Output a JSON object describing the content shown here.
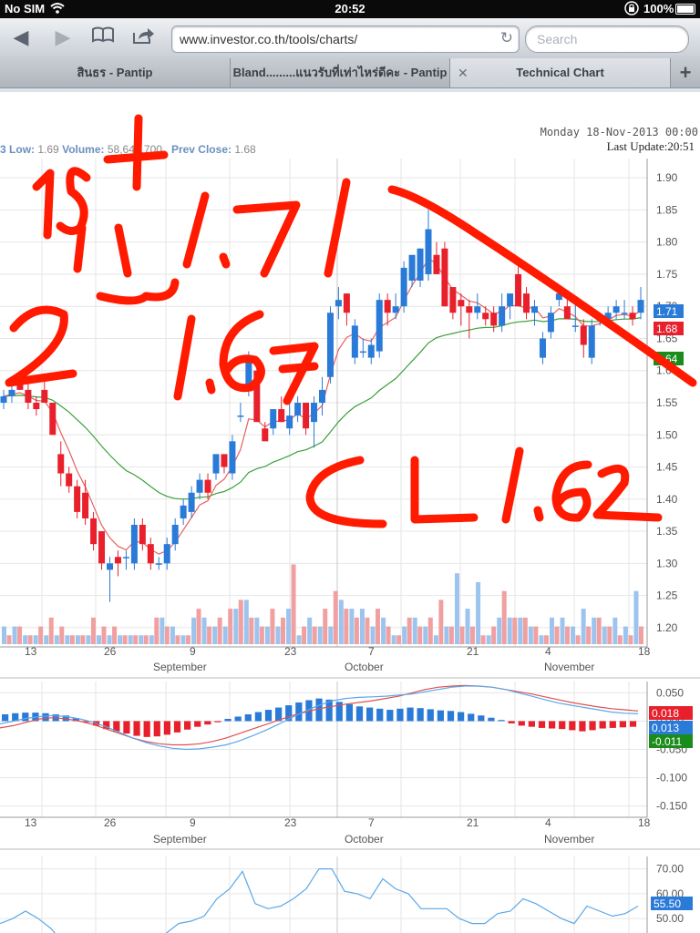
{
  "status_bar": {
    "carrier": "No SIM",
    "time": "20:52",
    "battery": "100%"
  },
  "browser": {
    "url": "www.investor.co.th/tools/charts/",
    "search_placeholder": "Search",
    "tabs": [
      {
        "label": "สินธร - Pantip"
      },
      {
        "label": "Bland.........แนวรับที่เท่าไหร่ดีคะ - Pantip"
      },
      {
        "label": "Technical Chart"
      }
    ]
  },
  "chart_header": {
    "date": "Monday 18-Nov-2013 00:00",
    "last_update": "Last Update:20:51",
    "low_prefix": "3",
    "low_label": "Low:",
    "low_value": "1.69",
    "volume_label": "Volume:",
    "volume_value": "58,640,700",
    "prev_close_label": "Prev Close:",
    "prev_close_value": "1.68"
  },
  "colors": {
    "up": "#2a7ad8",
    "down": "#e8202c",
    "ema_short": "#e86060",
    "ema_long": "#3aa03a",
    "macd_line": "#5aa8e8",
    "signal_line": "#e05050",
    "annotation": "#ff1a00"
  },
  "chart_data": [
    {
      "type": "candlestick",
      "title": "Price",
      "y_ticks": [
        "1.90",
        "1.85",
        "1.80",
        "1.75",
        "1.70",
        "1.65",
        "1.60",
        "1.55",
        "1.50",
        "1.45",
        "1.40",
        "1.35",
        "1.30",
        "1.25",
        "1.20"
      ],
      "ylim": [
        1.17,
        1.93
      ],
      "price_tags": [
        {
          "value": "1.71",
          "color": "#2a7ad8"
        },
        {
          "value": "1.68",
          "color": "#e8202c"
        },
        {
          "value": "1.64",
          "color": "#1a8c1a"
        }
      ],
      "x_labels": [
        "13",
        "26",
        "9",
        "23",
        "7",
        "21",
        "4",
        "18"
      ],
      "month_labels": [
        "September",
        "October",
        "November"
      ],
      "candles": [
        [
          1.55,
          1.57,
          1.54,
          1.56
        ],
        [
          1.56,
          1.58,
          1.55,
          1.57
        ],
        [
          1.58,
          1.6,
          1.57,
          1.57
        ],
        [
          1.57,
          1.58,
          1.54,
          1.55
        ],
        [
          1.55,
          1.56,
          1.53,
          1.54
        ],
        [
          1.57,
          1.59,
          1.55,
          1.55
        ],
        [
          1.55,
          1.55,
          1.5,
          1.5
        ],
        [
          1.47,
          1.49,
          1.42,
          1.44
        ],
        [
          1.44,
          1.45,
          1.41,
          1.42
        ],
        [
          1.42,
          1.43,
          1.37,
          1.38
        ],
        [
          1.41,
          1.43,
          1.36,
          1.37
        ],
        [
          1.37,
          1.38,
          1.32,
          1.33
        ],
        [
          1.35,
          1.35,
          1.29,
          1.3
        ],
        [
          1.29,
          1.31,
          1.24,
          1.3
        ],
        [
          1.31,
          1.32,
          1.28,
          1.3
        ],
        [
          1.31,
          1.32,
          1.29,
          1.31
        ],
        [
          1.3,
          1.37,
          1.29,
          1.36
        ],
        [
          1.36,
          1.37,
          1.32,
          1.33
        ],
        [
          1.33,
          1.34,
          1.29,
          1.3
        ],
        [
          1.3,
          1.31,
          1.29,
          1.3
        ],
        [
          1.3,
          1.34,
          1.29,
          1.33
        ],
        [
          1.33,
          1.37,
          1.32,
          1.36
        ],
        [
          1.37,
          1.4,
          1.36,
          1.39
        ],
        [
          1.38,
          1.42,
          1.37,
          1.41
        ],
        [
          1.41,
          1.44,
          1.4,
          1.43
        ],
        [
          1.43,
          1.44,
          1.4,
          1.41
        ],
        [
          1.44,
          1.47,
          1.43,
          1.47
        ],
        [
          1.47,
          1.47,
          1.44,
          1.45
        ],
        [
          1.44,
          1.5,
          1.43,
          1.49
        ],
        [
          1.53,
          1.55,
          1.52,
          1.53
        ],
        [
          1.57,
          1.63,
          1.56,
          1.62
        ],
        [
          1.6,
          1.61,
          1.52,
          1.52
        ],
        [
          1.51,
          1.52,
          1.49,
          1.49
        ],
        [
          1.51,
          1.54,
          1.5,
          1.54
        ],
        [
          1.54,
          1.56,
          1.52,
          1.52
        ],
        [
          1.51,
          1.55,
          1.5,
          1.53
        ],
        [
          1.53,
          1.56,
          1.52,
          1.55
        ],
        [
          1.55,
          1.55,
          1.5,
          1.51
        ],
        [
          1.52,
          1.56,
          1.48,
          1.55
        ],
        [
          1.55,
          1.59,
          1.53,
          1.57
        ],
        [
          1.59,
          1.7,
          1.58,
          1.69
        ],
        [
          1.7,
          1.73,
          1.68,
          1.71
        ],
        [
          1.72,
          1.72,
          1.67,
          1.69
        ],
        [
          1.62,
          1.68,
          1.61,
          1.67
        ],
        [
          1.63,
          1.65,
          1.62,
          1.63
        ],
        [
          1.62,
          1.65,
          1.61,
          1.64
        ],
        [
          1.63,
          1.72,
          1.62,
          1.71
        ],
        [
          1.71,
          1.72,
          1.67,
          1.69
        ],
        [
          1.69,
          1.72,
          1.68,
          1.7
        ],
        [
          1.7,
          1.77,
          1.69,
          1.76
        ],
        [
          1.74,
          1.78,
          1.73,
          1.78
        ],
        [
          1.74,
          1.79,
          1.73,
          1.79
        ],
        [
          1.75,
          1.85,
          1.74,
          1.82
        ],
        [
          1.78,
          1.8,
          1.75,
          1.75
        ],
        [
          1.79,
          1.8,
          1.7,
          1.7
        ],
        [
          1.73,
          1.73,
          1.68,
          1.69
        ],
        [
          1.71,
          1.72,
          1.67,
          1.7
        ],
        [
          1.7,
          1.71,
          1.65,
          1.69
        ],
        [
          1.69,
          1.72,
          1.68,
          1.7
        ],
        [
          1.69,
          1.7,
          1.67,
          1.68
        ],
        [
          1.69,
          1.7,
          1.66,
          1.67
        ],
        [
          1.67,
          1.72,
          1.66,
          1.7
        ],
        [
          1.7,
          1.72,
          1.68,
          1.72
        ],
        [
          1.75,
          1.77,
          1.7,
          1.7
        ],
        [
          1.72,
          1.73,
          1.68,
          1.69
        ],
        [
          1.69,
          1.71,
          1.67,
          1.7
        ],
        [
          1.62,
          1.66,
          1.61,
          1.65
        ],
        [
          1.66,
          1.7,
          1.65,
          1.69
        ],
        [
          1.71,
          1.73,
          1.7,
          1.72
        ],
        [
          1.7,
          1.72,
          1.68,
          1.68
        ],
        [
          1.67,
          1.71,
          1.66,
          1.67
        ],
        [
          1.67,
          1.68,
          1.62,
          1.64
        ],
        [
          1.62,
          1.68,
          1.61,
          1.67
        ],
        [
          1.68,
          1.69,
          1.67,
          1.68
        ],
        [
          1.68,
          1.7,
          1.67,
          1.69
        ],
        [
          1.69,
          1.71,
          1.68,
          1.7
        ],
        [
          1.69,
          1.71,
          1.68,
          1.69
        ],
        [
          1.69,
          1.7,
          1.67,
          1.68
        ],
        [
          1.69,
          1.73,
          1.68,
          1.71
        ]
      ],
      "volume_up": [
        2,
        2,
        1,
        1,
        1,
        1,
        1,
        1,
        1,
        1,
        1,
        1,
        1,
        1,
        1,
        3,
        2,
        1,
        3,
        3,
        2,
        2,
        4,
        5,
        3,
        2,
        2,
        4,
        1,
        3,
        2,
        2,
        5,
        4,
        4,
        2,
        3,
        1,
        2,
        3,
        2,
        1,
        2,
        8,
        4,
        7,
        1,
        3,
        3,
        3,
        2,
        1,
        3,
        3,
        2,
        4,
        3,
        2,
        3,
        2,
        6
      ],
      "volume_down": [
        1,
        2,
        1,
        2,
        3,
        2,
        1,
        1,
        3,
        2,
        2,
        1,
        1,
        1,
        3,
        2,
        1,
        1,
        4,
        2,
        3,
        4,
        5,
        3,
        2,
        4,
        3,
        9,
        2,
        2,
        4,
        6,
        4,
        3,
        3,
        4,
        2,
        1,
        3,
        2,
        3,
        5,
        2,
        2,
        2,
        1,
        2,
        6,
        3,
        3,
        2,
        1,
        2,
        2,
        1,
        2,
        3,
        2,
        1,
        1,
        2
      ]
    },
    {
      "type": "macd",
      "y_ticks": [
        "0.050",
        "0.000",
        "-0.050",
        "-0.100",
        "-0.150"
      ],
      "ylim": [
        -0.17,
        0.07
      ],
      "tags": [
        {
          "value": "0.018",
          "color": "#e8202c"
        },
        {
          "value": "0.013",
          "color": "#2a7ad8"
        },
        {
          "value": "-0.011",
          "color": "#1a8c1a"
        }
      ],
      "histogram": [
        0.012,
        0.014,
        0.015,
        0.015,
        0.014,
        0.012,
        0.01,
        0.005,
        -0.002,
        -0.008,
        -0.014,
        -0.018,
        -0.022,
        -0.026,
        -0.028,
        -0.027,
        -0.024,
        -0.02,
        -0.015,
        -0.01,
        -0.006,
        -0.002,
        0.004,
        0.008,
        0.012,
        0.016,
        0.02,
        0.024,
        0.028,
        0.033,
        0.037,
        0.04,
        0.038,
        0.034,
        0.03,
        0.026,
        0.024,
        0.022,
        0.02,
        0.022,
        0.024,
        0.023,
        0.021,
        0.019,
        0.018,
        0.016,
        0.013,
        0.01,
        0.006,
        0.002,
        -0.004,
        -0.008,
        -0.01,
        -0.012,
        -0.013,
        -0.014,
        -0.016,
        -0.018,
        -0.016,
        -0.013,
        -0.012,
        -0.011,
        -0.01
      ],
      "macd_line": [
        -0.005,
        0.0,
        0.005,
        0.008,
        0.01,
        0.008,
        0.004,
        -0.002,
        -0.01,
        -0.02,
        -0.03,
        -0.038,
        -0.044,
        -0.048,
        -0.05,
        -0.049,
        -0.046,
        -0.042,
        -0.035,
        -0.026,
        -0.016,
        -0.005,
        0.007,
        0.018,
        0.028,
        0.036,
        0.04,
        0.042,
        0.043,
        0.044,
        0.046,
        0.048,
        0.052,
        0.056,
        0.06,
        0.062,
        0.062,
        0.06,
        0.056,
        0.05,
        0.044,
        0.038,
        0.032,
        0.028,
        0.024,
        0.02,
        0.016,
        0.014,
        0.013
      ],
      "signal_line": [
        -0.012,
        -0.008,
        -0.002,
        0.004,
        0.006,
        0.004,
        0.0,
        -0.006,
        -0.014,
        -0.022,
        -0.03,
        -0.036,
        -0.04,
        -0.042,
        -0.042,
        -0.04,
        -0.036,
        -0.03,
        -0.022,
        -0.014,
        -0.006,
        0.002,
        0.01,
        0.016,
        0.022,
        0.026,
        0.03,
        0.033,
        0.036,
        0.04,
        0.044,
        0.05,
        0.056,
        0.06,
        0.062,
        0.063,
        0.062,
        0.06,
        0.056,
        0.052,
        0.048,
        0.043,
        0.038,
        0.033,
        0.029,
        0.025,
        0.022,
        0.02,
        0.018
      ]
    },
    {
      "type": "line",
      "y_ticks": [
        "70.00",
        "60.00",
        "50.00"
      ],
      "ylim": [
        42,
        75
      ],
      "tag": {
        "value": "55.50",
        "color": "#2a7ad8"
      },
      "values": [
        48,
        50,
        53,
        50,
        46,
        40,
        38,
        36,
        36,
        40,
        43,
        41,
        42,
        44,
        48,
        49,
        51,
        58,
        62,
        69,
        56,
        54,
        55,
        58,
        62,
        70,
        70,
        61,
        60,
        58,
        66,
        62,
        60,
        54,
        54,
        54,
        50,
        48,
        48,
        52,
        53,
        58,
        56,
        53,
        50,
        48,
        55,
        53,
        51,
        52,
        55
      ]
    }
  ],
  "annotations": [
    "1st",
    "1.71",
    "2nd",
    "1.67",
    "CL 1.62"
  ]
}
